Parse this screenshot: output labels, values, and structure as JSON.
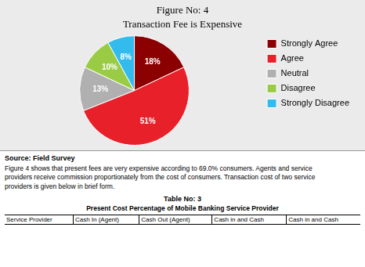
{
  "chart_data": {
    "type": "pie",
    "title": "Figure No: 4",
    "subtitle": "Transaction Fee is Expensive",
    "categories": [
      "Strongly Agree",
      "Agree",
      "Neutral",
      "Disagree",
      "Strongly Disagree"
    ],
    "values": [
      18,
      51,
      13,
      10,
      8
    ],
    "value_labels": [
      "18%",
      "51%",
      "13%",
      "10%",
      "8%"
    ],
    "colors": [
      "#8B0000",
      "#E8202A",
      "#B0B0B0",
      "#99CC44",
      "#33BBEE"
    ],
    "data_labels": true,
    "legend": "right",
    "annotations": [
      "Source: Field Survey",
      "Figure 4 shows that present fees are very expensive according to 69.0% consumers. Agents and service\nproviders receive commission proportionately from the cost of consumers. Transaction cost of two service\nproviders is given below in brief form.",
      "Table No: 3",
      "Present Cost Percentage of Mobile Banking Service Provider"
    ],
    "table_headers": [
      "Service Provider",
      "Cash In (Agent)",
      "Cash Out (Agent)",
      "Cash in and Cash",
      "Cash in and Cash"
    ]
  }
}
